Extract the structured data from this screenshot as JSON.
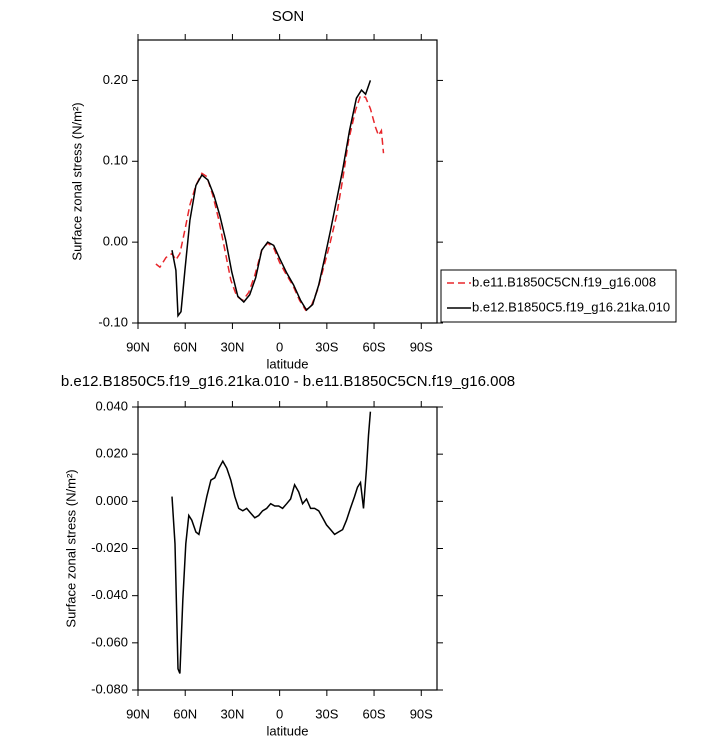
{
  "chart_data": [
    {
      "type": "line",
      "title": "SON",
      "xlabel": "latitude",
      "ylabel": "Surface zonal stress (N/m²)",
      "xlim": [
        90,
        -100
      ],
      "xticks": [
        {
          "value": 90,
          "label": "90N"
        },
        {
          "value": 60,
          "label": "60N"
        },
        {
          "value": 30,
          "label": "30N"
        },
        0,
        {
          "value": -30,
          "label": "30S"
        },
        {
          "value": -60,
          "label": "60S"
        },
        {
          "value": -90,
          "label": "90S"
        }
      ],
      "ylim": [
        -0.1,
        0.25
      ],
      "yticks": [
        {
          "value": -0.1,
          "label": "-0.10"
        },
        {
          "value": 0,
          "label": "0.00"
        },
        {
          "value": 0.1,
          "label": "0.10"
        },
        {
          "value": 0.2,
          "label": "0.20"
        }
      ],
      "legend": "right",
      "series": [
        {
          "name": "b.e11.B1850C5CN.f19_g16.008",
          "color": "#e8262b",
          "linestyle": "dashed",
          "x": [
            78.6,
            76.1,
            72.2,
            68.4,
            65.9,
            63.4,
            60.2,
            57.0,
            53.2,
            49.4,
            46.3,
            42.5,
            38.6,
            34.8,
            31.0,
            27.2,
            23.4,
            19.6,
            15.8,
            11.4,
            7.6,
            3.8,
            0.0,
            -4.5,
            -8.3,
            -12.7,
            -16.5,
            -20.3,
            -24.1,
            -27.9,
            -31.7,
            -36.2,
            -40.0,
            -43.8,
            -48.2,
            -51.4,
            -54.6,
            -57.7,
            -60.9,
            -62.8,
            -64.7,
            -66.0
          ],
          "values": [
            -0.027,
            -0.031,
            -0.019,
            -0.014,
            -0.022,
            -0.014,
            0.015,
            0.046,
            0.07,
            0.085,
            0.081,
            0.058,
            0.027,
            -0.01,
            -0.047,
            -0.067,
            -0.072,
            -0.062,
            -0.041,
            -0.01,
            -0.001,
            -0.007,
            -0.025,
            -0.041,
            -0.053,
            -0.072,
            -0.084,
            -0.078,
            -0.059,
            -0.032,
            -0.004,
            0.033,
            0.077,
            0.126,
            0.163,
            0.181,
            0.179,
            0.165,
            0.142,
            0.132,
            0.138,
            0.11
          ]
        },
        {
          "name": "b.e12.B1850C5.f19_g16.21ka.010",
          "color": "#000000",
          "linestyle": "solid",
          "x": [
            68.4,
            65.9,
            64.6,
            62.7,
            60.2,
            57.0,
            53.2,
            49.4,
            45.6,
            41.8,
            38.0,
            34.2,
            30.4,
            26.6,
            22.8,
            19.0,
            15.2,
            11.4,
            7.6,
            3.8,
            0.0,
            -4.5,
            -8.9,
            -13.3,
            -17.1,
            -21.0,
            -24.8,
            -28.6,
            -32.4,
            -36.2,
            -40.0,
            -44.4,
            -48.8,
            -52.0,
            -54.6,
            -57.7
          ],
          "values": [
            -0.01,
            -0.035,
            -0.091,
            -0.086,
            -0.035,
            0.027,
            0.07,
            0.083,
            0.077,
            0.058,
            0.033,
            0.002,
            -0.037,
            -0.067,
            -0.074,
            -0.065,
            -0.044,
            -0.01,
            0.0,
            -0.004,
            -0.02,
            -0.038,
            -0.053,
            -0.072,
            -0.084,
            -0.077,
            -0.053,
            -0.02,
            0.015,
            0.052,
            0.089,
            0.138,
            0.178,
            0.188,
            0.183,
            0.2
          ]
        }
      ]
    },
    {
      "type": "line",
      "title": "b.e12.B1850C5.f19_g16.21ka.010 - b.e11.B1850C5CN.f19_g16.008",
      "xlabel": "latitude",
      "ylabel": "Surface zonal stress (N/m²)",
      "xlim": [
        90,
        -100
      ],
      "xticks": [
        {
          "value": 90,
          "label": "90N"
        },
        {
          "value": 60,
          "label": "60N"
        },
        {
          "value": 30,
          "label": "30N"
        },
        0,
        {
          "value": -30,
          "label": "30S"
        },
        {
          "value": -60,
          "label": "60S"
        },
        {
          "value": -90,
          "label": "90S"
        }
      ],
      "ylim": [
        -0.08,
        0.04
      ],
      "yticks": [
        {
          "value": -0.08,
          "label": "-0.080"
        },
        {
          "value": -0.06,
          "label": "-0.060"
        },
        {
          "value": -0.04,
          "label": "-0.040"
        },
        {
          "value": -0.02,
          "label": "-0.020"
        },
        {
          "value": 0,
          "label": "0.000"
        },
        {
          "value": 0.02,
          "label": "0.020"
        },
        {
          "value": 0.04,
          "label": "0.040"
        }
      ],
      "series": [
        {
          "color": "#000000",
          "linestyle": "solid",
          "x": [
            68.4,
            66.5,
            64.6,
            63.4,
            61.5,
            59.6,
            57.7,
            55.8,
            53.2,
            51.3,
            48.8,
            46.3,
            43.7,
            41.2,
            38.6,
            36.1,
            33.6,
            31.0,
            28.5,
            26.0,
            23.4,
            20.9,
            18.4,
            15.8,
            13.3,
            10.8,
            8.2,
            5.7,
            3.1,
            0.6,
            -1.9,
            -4.5,
            -7.0,
            -9.5,
            -12.1,
            -14.6,
            -17.1,
            -19.7,
            -22.2,
            -24.8,
            -27.3,
            -29.8,
            -32.4,
            -34.9,
            -37.4,
            -40.0,
            -42.5,
            -45.0,
            -47.6,
            -49.5,
            -51.4,
            -53.3,
            -55.2,
            -56.5,
            -57.7
          ],
          "values": [
            0.002,
            -0.018,
            -0.071,
            -0.073,
            -0.042,
            -0.018,
            -0.006,
            -0.008,
            -0.013,
            -0.014,
            -0.006,
            0.002,
            0.009,
            0.01,
            0.014,
            0.017,
            0.014,
            0.009,
            0.002,
            -0.003,
            -0.004,
            -0.003,
            -0.005,
            -0.007,
            -0.006,
            -0.004,
            -0.003,
            -0.001,
            -0.002,
            -0.002,
            -0.003,
            -0.001,
            0.001,
            0.007,
            0.004,
            -0.001,
            0.001,
            -0.003,
            -0.003,
            -0.004,
            -0.007,
            -0.01,
            -0.012,
            -0.014,
            -0.013,
            -0.012,
            -0.008,
            -0.003,
            0.002,
            0.006,
            0.008,
            -0.003,
            0.014,
            0.028,
            0.038
          ]
        }
      ]
    }
  ]
}
